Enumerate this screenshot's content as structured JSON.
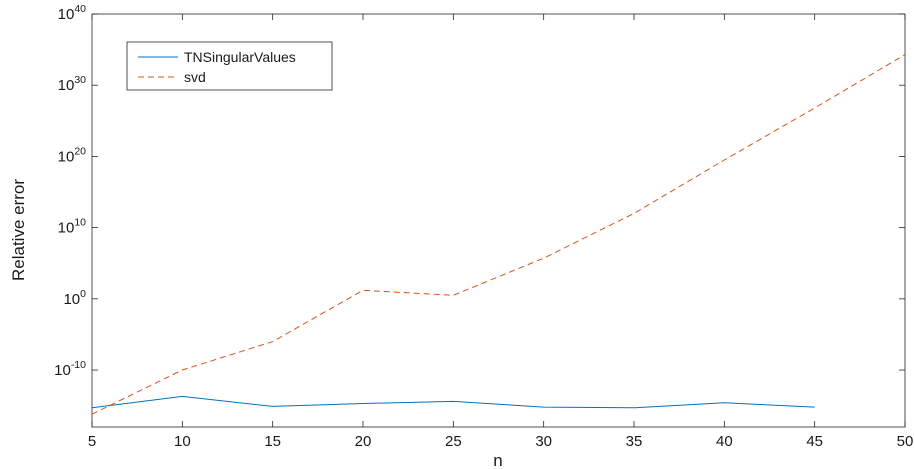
{
  "chart_data": {
    "type": "line",
    "xlabel": "n",
    "ylabel": "Relative error",
    "xlim": [
      5,
      50
    ],
    "ylim_log10": [
      -18,
      40
    ],
    "yscale": "log",
    "x_ticks": [
      5,
      10,
      15,
      20,
      25,
      30,
      35,
      40,
      45,
      50
    ],
    "y_ticks": [
      {
        "base": "10",
        "exp": "-10",
        "log10": -10
      },
      {
        "base": "10",
        "exp": "0",
        "log10": 0
      },
      {
        "base": "10",
        "exp": "10",
        "log10": 10
      },
      {
        "base": "10",
        "exp": "20",
        "log10": 20
      },
      {
        "base": "10",
        "exp": "30",
        "log10": 30
      },
      {
        "base": "10",
        "exp": "40",
        "log10": 40
      }
    ],
    "grid": false,
    "legend_position": "top-left",
    "series": [
      {
        "name": "TNSingularValues",
        "color": "#0072BD",
        "style": "solid",
        "x": [
          5,
          10,
          15,
          20,
          25,
          30,
          35,
          40,
          45
        ],
        "y_log10": [
          -15.3,
          -13.7,
          -15.1,
          -14.7,
          -14.4,
          -15.2,
          -15.3,
          -14.6,
          -15.2
        ]
      },
      {
        "name": "svd",
        "color": "#D95319",
        "style": "dashed",
        "x": [
          5,
          10,
          15,
          20,
          25,
          30,
          35,
          40,
          45,
          50
        ],
        "y_log10": [
          -16.2,
          -10,
          -6,
          1.2,
          0.5,
          5.7,
          12,
          19.5,
          26.8,
          34.3
        ]
      }
    ]
  }
}
